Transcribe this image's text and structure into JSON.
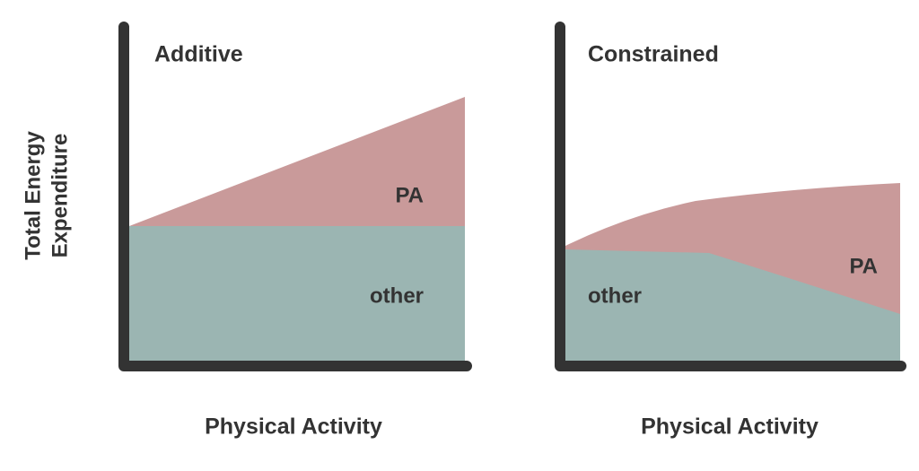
{
  "y_axis_label": [
    "Total Energy",
    "Expenditure"
  ],
  "panels": [
    {
      "title": "Additive",
      "x_axis_label": "Physical Activity",
      "upper_label": "PA",
      "lower_label": "other"
    },
    {
      "title": "Constrained",
      "x_axis_label": "Physical Activity",
      "upper_label": "PA",
      "lower_label": "other"
    }
  ]
}
